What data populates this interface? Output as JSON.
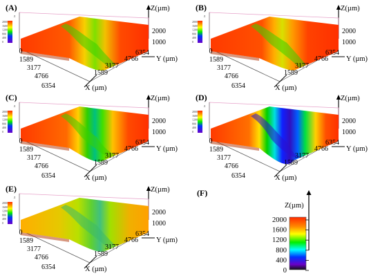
{
  "panels": [
    {
      "letter": "(A)",
      "variant": "smooth-groove"
    },
    {
      "letter": "(B)",
      "variant": "smooth-groove-flat"
    },
    {
      "letter": "(C)",
      "variant": "deep-groove"
    },
    {
      "letter": "(D)",
      "variant": "deepest-groove"
    },
    {
      "letter": "(E)",
      "variant": "rough-surface"
    }
  ],
  "axes": {
    "x_label": "X (µm)",
    "y_label": "Y (µm)",
    "z_label": "Z(µm)",
    "x_ticks": [
      "0",
      "1589",
      "3177",
      "4766",
      "6354"
    ],
    "y_ticks": [
      "1589",
      "3177",
      "4766",
      "6354"
    ],
    "z_ticks": [
      "1000",
      "2000"
    ]
  },
  "mini_colorbar": {
    "label": "Z",
    "ticks": [
      "2000",
      "1600",
      "1200",
      "800",
      "400",
      "0"
    ]
  },
  "colorbar": {
    "letter": "(F)",
    "label": "Z(µm)",
    "ticks": [
      "2000",
      "1600",
      "1200",
      "800",
      "400",
      "0"
    ],
    "colors": [
      "#ff2a00",
      "#ffb000",
      "#ffff00",
      "#00ee00",
      "#00ffff",
      "#0033ff",
      "#6a00c8",
      "#1a1a1a"
    ]
  }
}
